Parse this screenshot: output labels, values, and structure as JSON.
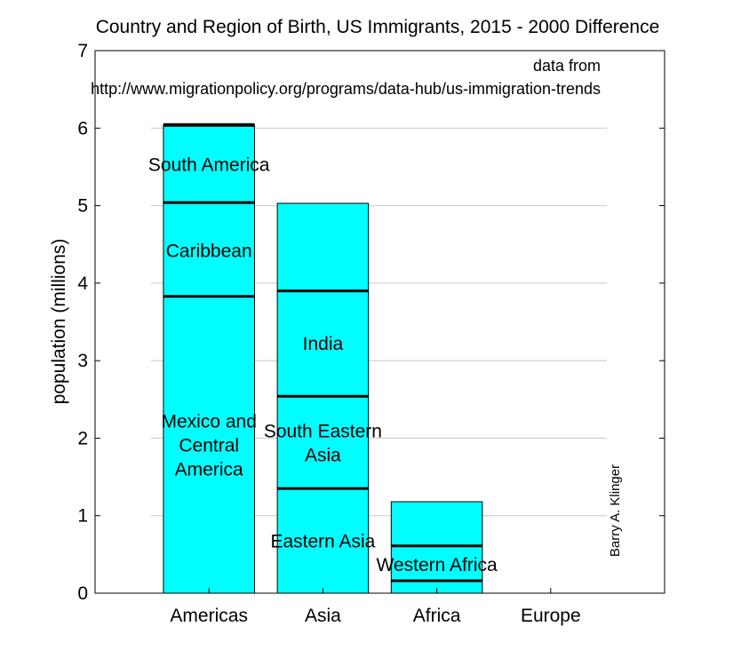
{
  "chart_data": {
    "type": "bar",
    "stacked": true,
    "title": "Country and Region of Birth, US Immigrants, 2015 - 2000 Difference",
    "source_note": [
      "data from",
      "http://www.migrationpolicy.org/programs/data-hub/us-immigration-trends"
    ],
    "author": "Barry A. Klinger",
    "xlabel": "",
    "ylabel": "population (millions)",
    "ylim": [
      0,
      7
    ],
    "xlim": [
      0,
      5
    ],
    "yticks": [
      0,
      1,
      2,
      3,
      4,
      5,
      6,
      7
    ],
    "categories": [
      "Americas",
      "Asia",
      "Africa",
      "Europe"
    ],
    "grid": true,
    "bar_color": "#00ffff",
    "stacks": [
      {
        "category": "Americas",
        "boundaries": [
          0,
          3.83,
          5.04,
          6.04
        ],
        "labels": [
          {
            "text": [
              "Mexico and",
              "Central",
              "America"
            ],
            "y": 1.92
          },
          {
            "text": [
              "Caribbean"
            ],
            "y": 4.43
          },
          {
            "text": [
              "South America"
            ],
            "y": 5.54
          }
        ]
      },
      {
        "category": "Asia",
        "boundaries": [
          0,
          1.35,
          2.54,
          3.9,
          5.03
        ],
        "labels": [
          {
            "text": [
              "Eastern Asia"
            ],
            "y": 0.68
          },
          {
            "text": [
              "South Eastern",
              "Asia"
            ],
            "y": 1.95
          },
          {
            "text": [
              "India"
            ],
            "y": 3.23
          }
        ]
      },
      {
        "category": "Africa",
        "boundaries": [
          0,
          0.16,
          0.61,
          1.18
        ],
        "labels": [
          {
            "text": [
              "Western Africa"
            ],
            "y": 0.38
          }
        ]
      },
      {
        "category": "Europe",
        "boundaries": [],
        "labels": []
      }
    ]
  }
}
